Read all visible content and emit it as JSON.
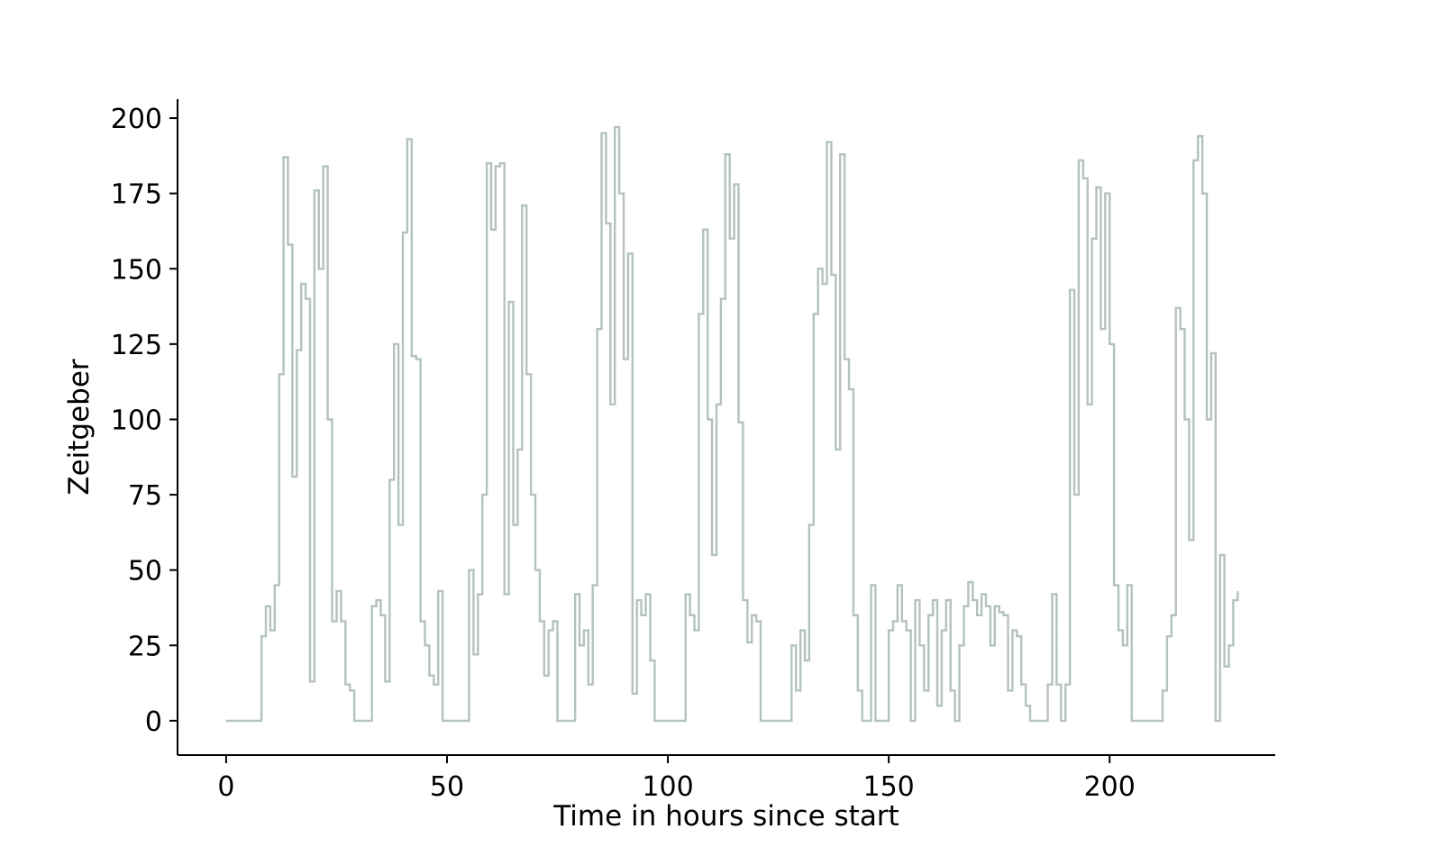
{
  "figure": {
    "background": "#ffffff",
    "axis_color": "#000000"
  },
  "chart_data": {
    "type": "line",
    "style": "step-post",
    "title": "",
    "xlabel": "Time in hours since start",
    "ylabel": "Zeitgeber",
    "xlim": [
      -11,
      237.5
    ],
    "ylim": [
      -11.4,
      206.3
    ],
    "xticks": [
      0,
      50,
      100,
      150,
      200
    ],
    "yticks": [
      0,
      25,
      50,
      75,
      100,
      125,
      150,
      175,
      200
    ],
    "legend": "none",
    "grid": false,
    "line_color": "#b4c2bf",
    "x_start": 0,
    "x_step": 1,
    "y": [
      0,
      0,
      0,
      0,
      0,
      0,
      0,
      0,
      28,
      38,
      30,
      45,
      115,
      187,
      158,
      81,
      123,
      145,
      140,
      13,
      176,
      150,
      184,
      100,
      33,
      43,
      33,
      12,
      10,
      0,
      0,
      0,
      0,
      38,
      40,
      35,
      13,
      80,
      125,
      65,
      162,
      193,
      121,
      120,
      33,
      25,
      15,
      12,
      43,
      0,
      0,
      0,
      0,
      0,
      0,
      50,
      22,
      42,
      75,
      185,
      163,
      184,
      185,
      42,
      139,
      65,
      90,
      171,
      115,
      75,
      50,
      33,
      15,
      30,
      33,
      0,
      0,
      0,
      0,
      42,
      25,
      30,
      12,
      45,
      130,
      195,
      165,
      105,
      197,
      175,
      120,
      155,
      9,
      40,
      35,
      42,
      20,
      0,
      0,
      0,
      0,
      0,
      0,
      0,
      42,
      35,
      30,
      135,
      163,
      100,
      55,
      105,
      140,
      188,
      160,
      178,
      99,
      40,
      26,
      35,
      33,
      0,
      0,
      0,
      0,
      0,
      0,
      0,
      25,
      10,
      30,
      20,
      65,
      135,
      150,
      145,
      192,
      148,
      90,
      188,
      120,
      110,
      35,
      10,
      0,
      0,
      45,
      0,
      0,
      0,
      30,
      33,
      45,
      33,
      30,
      0,
      40,
      25,
      10,
      35,
      40,
      5,
      30,
      40,
      10,
      0,
      25,
      38,
      46,
      40,
      35,
      42,
      38,
      25,
      38,
      36,
      35,
      10,
      30,
      28,
      12,
      5,
      0,
      0,
      0,
      0,
      12,
      42,
      12,
      0,
      12,
      143,
      75,
      186,
      180,
      105,
      160,
      177,
      130,
      175,
      125,
      45,
      30,
      25,
      45,
      0,
      0,
      0,
      0,
      0,
      0,
      0,
      10,
      28,
      35,
      137,
      130,
      100,
      60,
      186,
      194,
      175,
      100,
      122,
      0,
      55,
      18,
      25,
      40,
      43
    ]
  }
}
